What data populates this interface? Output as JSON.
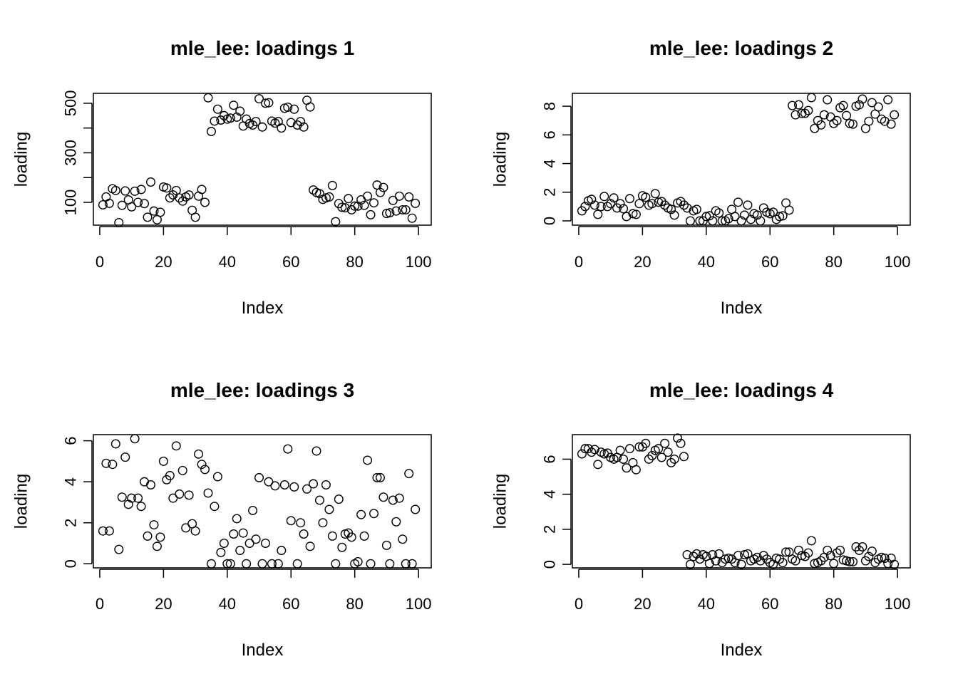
{
  "chart_data": [
    {
      "type": "scatter",
      "title": "mle_lee: loadings 1",
      "xlabel": "Index",
      "ylabel": "loading",
      "xlim": [
        -2,
        104
      ],
      "ylim": [
        8,
        540
      ],
      "xticks": [
        0,
        20,
        40,
        60,
        80,
        100
      ],
      "xtick_labels": [
        "0",
        "20",
        "40",
        "60",
        "80",
        "100"
      ],
      "yticks": [
        100,
        200,
        300,
        400,
        500
      ],
      "ytick_labels": [
        "100",
        "",
        "300",
        "",
        "500"
      ],
      "grid": false,
      "x": [
        1,
        2,
        3,
        4,
        5,
        6,
        7,
        8,
        9,
        10,
        11,
        12,
        13,
        14,
        15,
        16,
        17,
        18,
        19,
        20,
        21,
        22,
        23,
        24,
        25,
        26,
        27,
        28,
        29,
        30,
        31,
        32,
        33,
        34,
        35,
        36,
        37,
        38,
        39,
        40,
        41,
        42,
        43,
        44,
        45,
        46,
        47,
        48,
        49,
        50,
        51,
        52,
        53,
        54,
        55,
        56,
        57,
        58,
        59,
        60,
        61,
        62,
        63,
        64,
        65,
        66,
        67,
        68,
        69,
        70,
        71,
        72,
        73,
        74,
        75,
        76,
        77,
        78,
        79,
        80,
        81,
        82,
        83,
        84,
        85,
        86,
        87,
        88,
        89,
        90,
        91,
        92,
        93,
        94,
        95,
        96,
        97,
        98,
        99
      ],
      "y": [
        90,
        122,
        96,
        155,
        148,
        18,
        88,
        146,
        110,
        82,
        145,
        100,
        152,
        95,
        40,
        182,
        65,
        30,
        60,
        162,
        158,
        118,
        130,
        148,
        118,
        105,
        122,
        130,
        68,
        40,
        125,
        152,
        100,
        522,
        386,
        428,
        476,
        432,
        450,
        436,
        440,
        492,
        444,
        468,
        408,
        436,
        418,
        412,
        426,
        518,
        404,
        500,
        502,
        428,
        420,
        426,
        400,
        480,
        484,
        422,
        476,
        412,
        426,
        404,
        512,
        485,
        150,
        140,
        135,
        112,
        118,
        122,
        168,
        22,
        95,
        80,
        78,
        115,
        70,
        85,
        85,
        110,
        88,
        125,
        50,
        98,
        170,
        140,
        160,
        55,
        58,
        108,
        65,
        125,
        70,
        70,
        122,
        36,
        96
      ]
    },
    {
      "type": "scatter",
      "title": "mle_lee: loadings 2",
      "xlabel": "Index",
      "ylabel": "loading",
      "xlim": [
        -2,
        104
      ],
      "ylim": [
        -0.3,
        8.9
      ],
      "xticks": [
        0,
        20,
        40,
        60,
        80,
        100
      ],
      "xtick_labels": [
        "0",
        "20",
        "40",
        "60",
        "80",
        "100"
      ],
      "yticks": [
        0,
        2,
        4,
        6,
        8
      ],
      "ytick_labels": [
        "0",
        "2",
        "4",
        "6",
        "8"
      ],
      "grid": false,
      "x": [
        1,
        2,
        3,
        4,
        5,
        6,
        7,
        8,
        9,
        10,
        11,
        12,
        13,
        14,
        15,
        16,
        17,
        18,
        19,
        20,
        21,
        22,
        23,
        24,
        25,
        26,
        27,
        28,
        29,
        30,
        31,
        32,
        33,
        34,
        35,
        36,
        37,
        38,
        39,
        40,
        41,
        42,
        43,
        44,
        45,
        46,
        47,
        48,
        49,
        50,
        51,
        52,
        53,
        54,
        55,
        56,
        57,
        58,
        59,
        60,
        61,
        62,
        63,
        64,
        65,
        66,
        67,
        68,
        69,
        70,
        71,
        72,
        73,
        74,
        75,
        76,
        77,
        78,
        79,
        80,
        81,
        82,
        83,
        84,
        85,
        86,
        87,
        88,
        89,
        90,
        91,
        92,
        93,
        94,
        95,
        96,
        97,
        98,
        99
      ],
      "y": [
        0.7,
        1.0,
        1.4,
        1.5,
        1.1,
        0.45,
        1.0,
        1.7,
        1.0,
        1.2,
        1.6,
        0.9,
        1.2,
        0.85,
        0.3,
        1.55,
        0.5,
        0.45,
        1.2,
        1.75,
        1.65,
        1.1,
        1.2,
        1.9,
        1.3,
        1.35,
        1.1,
        0.9,
        0.8,
        0.4,
        1.25,
        1.35,
        1.1,
        0.9,
        0.0,
        0.7,
        0.8,
        0.0,
        0.0,
        0.3,
        0.35,
        0.0,
        0.7,
        0.55,
        0.0,
        0.0,
        0.15,
        0.8,
        0.3,
        1.3,
        0.0,
        0.4,
        1.1,
        0.1,
        0.5,
        0.4,
        0.0,
        0.9,
        0.6,
        0.5,
        0.6,
        0.1,
        0.3,
        0.35,
        1.25,
        0.75,
        8.05,
        7.4,
        8.1,
        7.5,
        7.5,
        7.7,
        8.6,
        6.45,
        7.0,
        6.7,
        7.4,
        8.45,
        7.25,
        6.8,
        7.0,
        7.9,
        8.05,
        7.35,
        6.8,
        6.75,
        8.0,
        8.1,
        8.5,
        6.45,
        6.95,
        8.25,
        7.45,
        7.95,
        7.1,
        6.95,
        8.45,
        6.75,
        7.4
      ]
    },
    {
      "type": "scatter",
      "title": "mle_lee: loadings 3",
      "xlabel": "Index",
      "ylabel": "loading",
      "xlim": [
        -2,
        104
      ],
      "ylim": [
        -0.2,
        6.3
      ],
      "xticks": [
        0,
        20,
        40,
        60,
        80,
        100
      ],
      "xtick_labels": [
        "0",
        "20",
        "40",
        "60",
        "80",
        "100"
      ],
      "yticks": [
        0,
        2,
        4,
        6
      ],
      "ytick_labels": [
        "0",
        "2",
        "4",
        "6"
      ],
      "grid": false,
      "x": [
        1,
        2,
        3,
        4,
        5,
        6,
        7,
        8,
        9,
        10,
        11,
        12,
        13,
        14,
        15,
        16,
        17,
        18,
        19,
        20,
        21,
        22,
        23,
        24,
        25,
        26,
        27,
        28,
        29,
        30,
        31,
        32,
        33,
        34,
        35,
        36,
        37,
        38,
        39,
        40,
        41,
        42,
        43,
        44,
        45,
        46,
        47,
        48,
        49,
        50,
        51,
        52,
        53,
        54,
        55,
        56,
        57,
        58,
        59,
        60,
        61,
        62,
        63,
        64,
        65,
        66,
        67,
        68,
        69,
        70,
        71,
        72,
        73,
        74,
        75,
        76,
        77,
        78,
        79,
        80,
        81,
        82,
        83,
        84,
        85,
        86,
        87,
        88,
        89,
        90,
        91,
        92,
        93,
        94,
        95,
        96,
        97,
        98,
        99
      ],
      "y": [
        1.6,
        4.9,
        1.6,
        4.85,
        5.85,
        0.7,
        3.25,
        5.2,
        2.9,
        3.2,
        6.1,
        3.2,
        2.8,
        4.0,
        1.35,
        3.85,
        1.9,
        0.85,
        1.3,
        5.0,
        4.1,
        4.3,
        3.2,
        5.75,
        3.4,
        4.55,
        1.75,
        3.35,
        1.95,
        1.6,
        5.35,
        4.85,
        4.6,
        3.45,
        0.0,
        2.8,
        4.25,
        0.55,
        1.0,
        0.0,
        0.0,
        1.45,
        2.2,
        0.65,
        1.5,
        0.0,
        1.0,
        2.6,
        1.2,
        4.2,
        0.0,
        1.0,
        4.0,
        0.0,
        3.8,
        0.0,
        0.65,
        3.85,
        5.6,
        2.1,
        3.75,
        0.0,
        2.0,
        1.45,
        3.65,
        0.85,
        3.9,
        5.5,
        3.1,
        2.0,
        3.85,
        2.65,
        1.35,
        0.0,
        3.15,
        0.8,
        1.45,
        1.5,
        1.3,
        0.0,
        0.1,
        2.4,
        1.35,
        5.05,
        0.0,
        2.45,
        4.2,
        4.2,
        3.25,
        0.9,
        0.0,
        3.1,
        2.05,
        3.2,
        1.2,
        0.0,
        4.4,
        0.0,
        2.65
      ]
    },
    {
      "type": "scatter",
      "title": "mle_lee: loadings 4",
      "xlabel": "Index",
      "ylabel": "loading",
      "xlim": [
        -2,
        104
      ],
      "ylim": [
        -0.2,
        7.4
      ],
      "xticks": [
        0,
        20,
        40,
        60,
        80,
        100
      ],
      "xtick_labels": [
        "0",
        "20",
        "40",
        "60",
        "80",
        "100"
      ],
      "yticks": [
        0,
        2,
        4,
        6
      ],
      "ytick_labels": [
        "0",
        "2",
        "4",
        "6"
      ],
      "grid": false,
      "x": [
        1,
        2,
        3,
        4,
        5,
        6,
        7,
        8,
        9,
        10,
        11,
        12,
        13,
        14,
        15,
        16,
        17,
        18,
        19,
        20,
        21,
        22,
        23,
        24,
        25,
        26,
        27,
        28,
        29,
        30,
        31,
        32,
        33,
        34,
        35,
        36,
        37,
        38,
        39,
        40,
        41,
        42,
        43,
        44,
        45,
        46,
        47,
        48,
        49,
        50,
        51,
        52,
        53,
        54,
        55,
        56,
        57,
        58,
        59,
        60,
        61,
        62,
        63,
        64,
        65,
        66,
        67,
        68,
        69,
        70,
        71,
        72,
        73,
        74,
        75,
        76,
        77,
        78,
        79,
        80,
        81,
        82,
        83,
        84,
        85,
        86,
        87,
        88,
        89,
        90,
        91,
        92,
        93,
        94,
        95,
        96,
        97,
        98,
        99
      ],
      "y": [
        6.3,
        6.6,
        6.6,
        6.4,
        6.55,
        5.7,
        6.4,
        6.3,
        6.35,
        6.1,
        6.0,
        6.1,
        6.5,
        6.0,
        5.5,
        6.6,
        5.8,
        5.4,
        6.7,
        6.7,
        6.9,
        6.0,
        6.2,
        6.5,
        6.6,
        6.1,
        6.9,
        6.4,
        5.8,
        6.0,
        7.2,
        6.9,
        6.15,
        0.55,
        0.0,
        0.45,
        0.6,
        0.3,
        0.55,
        0.45,
        0.05,
        0.55,
        0.2,
        0.6,
        0.1,
        0.3,
        0.35,
        0.3,
        0.1,
        0.5,
        0.0,
        0.55,
        0.6,
        0.2,
        0.3,
        0.4,
        0.2,
        0.5,
        0.3,
        0.1,
        0.0,
        0.35,
        0.3,
        0.1,
        0.7,
        0.7,
        0.3,
        0.2,
        0.8,
        0.5,
        0.45,
        0.65,
        1.35,
        0.05,
        0.1,
        0.2,
        0.4,
        0.8,
        0.5,
        0.05,
        0.65,
        0.8,
        0.25,
        0.2,
        0.15,
        0.15,
        1.0,
        0.8,
        1.0,
        0.2,
        0.45,
        0.75,
        0.1,
        0.3,
        0.4,
        0.35,
        0.05,
        0.35,
        0.0
      ]
    }
  ]
}
